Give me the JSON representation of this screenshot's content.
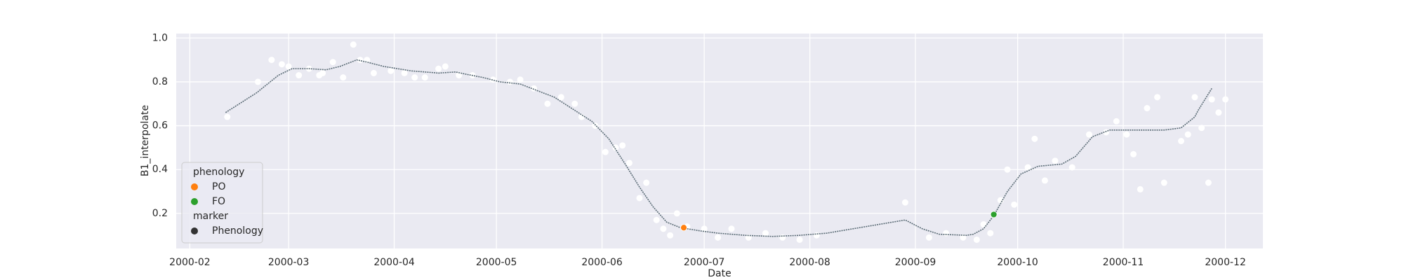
{
  "chart_data": {
    "type": "line",
    "xlabel": "Date",
    "ylabel": "B1_interpolate",
    "xlim": [
      27,
      346
    ],
    "xticks": [
      {
        "value": 31,
        "label": "2000-02"
      },
      {
        "value": 60,
        "label": "2000-03"
      },
      {
        "value": 91,
        "label": "2000-04"
      },
      {
        "value": 121,
        "label": "2000-05"
      },
      {
        "value": 152,
        "label": "2000-06"
      },
      {
        "value": 182,
        "label": "2000-07"
      },
      {
        "value": 213,
        "label": "2000-08"
      },
      {
        "value": 244,
        "label": "2000-09"
      },
      {
        "value": 274,
        "label": "2000-10"
      },
      {
        "value": 305,
        "label": "2000-11"
      },
      {
        "value": 335,
        "label": "2000-12"
      }
    ],
    "ylim": [
      0.04,
      1.02
    ],
    "yticks": [
      0.2,
      0.4,
      0.6,
      0.8,
      {
        "value": 1.0,
        "label": "1.0"
      }
    ],
    "grid": true,
    "background": "#eaeaf2",
    "series": [
      {
        "type": "scatter",
        "color": "#ffffff",
        "x": [
          42,
          51,
          55,
          58,
          60,
          63,
          66,
          69,
          70,
          73,
          76,
          79,
          81,
          83,
          85,
          90,
          94,
          97,
          100,
          104,
          106,
          110,
          114,
          120,
          125,
          128,
          132,
          136,
          140,
          144,
          146,
          150,
          153,
          156,
          158,
          160,
          163,
          165,
          168,
          170,
          172,
          174,
          177,
          182,
          186,
          190,
          195,
          200,
          205,
          210,
          215,
          241,
          248,
          253,
          258,
          262,
          264,
          266,
          269,
          271,
          273,
          277,
          279,
          282,
          285,
          290,
          295,
          300,
          303,
          306,
          308,
          310,
          312,
          315,
          317,
          322,
          324,
          326,
          328,
          330,
          331,
          333,
          335
        ],
        "values": [
          0.64,
          0.8,
          0.9,
          0.88,
          0.87,
          0.83,
          0.86,
          0.83,
          0.84,
          0.89,
          0.82,
          0.97,
          0.9,
          0.9,
          0.84,
          0.85,
          0.84,
          0.82,
          0.82,
          0.86,
          0.87,
          0.83,
          0.83,
          0.81,
          0.8,
          0.81,
          0.77,
          0.7,
          0.73,
          0.7,
          0.64,
          0.6,
          0.48,
          0.5,
          0.51,
          0.43,
          0.27,
          0.34,
          0.17,
          0.13,
          0.1,
          0.2,
          0.14,
          0.13,
          0.09,
          0.13,
          0.09,
          0.11,
          0.09,
          0.08,
          0.1,
          0.25,
          0.09,
          0.11,
          0.09,
          0.08,
          0.15,
          0.11,
          0.26,
          0.4,
          0.24,
          0.41,
          0.54,
          0.35,
          0.44,
          0.41,
          0.56,
          0.57,
          0.62,
          0.56,
          0.47,
          0.31,
          0.68,
          0.73,
          0.34,
          0.53,
          0.56,
          0.73,
          0.59,
          0.34,
          0.72,
          0.66,
          0.72
        ]
      },
      {
        "type": "line",
        "color": "#5a6b75",
        "x": [
          41.5,
          50.6,
          57,
          61,
          66,
          71,
          75,
          80,
          83,
          88,
          96,
          104,
          109,
          112,
          117,
          122,
          128,
          133,
          138,
          143,
          149,
          154,
          159,
          163,
          167,
          171,
          175,
          181,
          186,
          194,
          202,
          210,
          218,
          241,
          246,
          251,
          259,
          261,
          264,
          267,
          271,
          275,
          280,
          287,
          291,
          296,
          301,
          309,
          317,
          322,
          326,
          327,
          331
        ],
        "values": [
          0.66,
          0.75,
          0.83,
          0.86,
          0.86,
          0.855,
          0.87,
          0.9,
          0.89,
          0.87,
          0.85,
          0.84,
          0.845,
          0.835,
          0.82,
          0.8,
          0.79,
          0.76,
          0.73,
          0.68,
          0.62,
          0.54,
          0.42,
          0.32,
          0.23,
          0.16,
          0.135,
          0.12,
          0.11,
          0.1,
          0.095,
          0.1,
          0.11,
          0.17,
          0.13,
          0.105,
          0.1,
          0.105,
          0.13,
          0.19,
          0.3,
          0.38,
          0.415,
          0.425,
          0.46,
          0.55,
          0.58,
          0.58,
          0.58,
          0.59,
          0.64,
          0.67,
          0.77
        ]
      },
      {
        "type": "scatter",
        "name": "PO",
        "color": "#ff7f0e",
        "x": [
          176
        ],
        "values": [
          0.135
        ]
      },
      {
        "type": "scatter",
        "name": "FO",
        "color": "#2ca02c",
        "x": [
          267
        ],
        "values": [
          0.195
        ]
      }
    ],
    "legend": {
      "title": "phenology",
      "marker_title": "marker",
      "marker_label": "Phenology",
      "marker_color": "#333333",
      "loc": "lower left"
    }
  }
}
